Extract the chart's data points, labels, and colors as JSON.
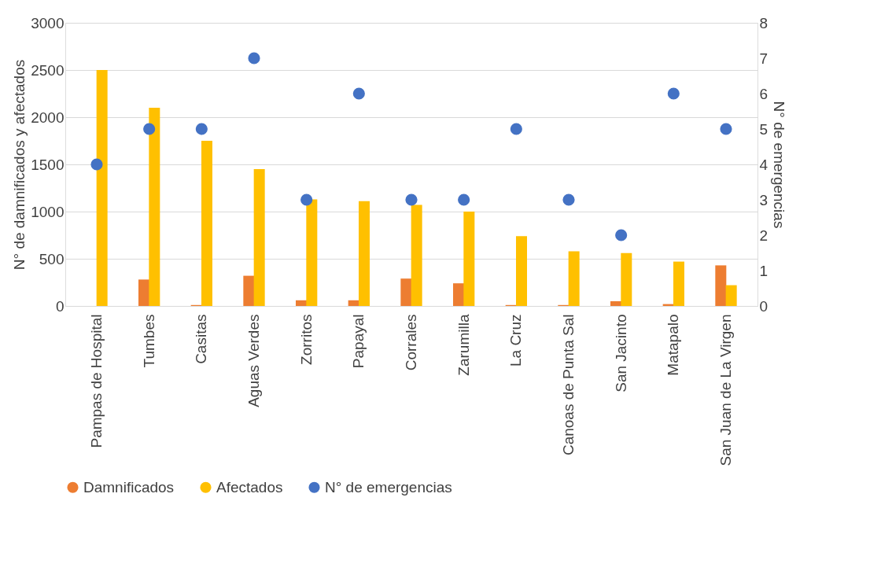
{
  "chart_data": {
    "type": "bar",
    "ylabel": "N° de damnificados y afectados",
    "y2label": "N° de emergencias",
    "categories": [
      "Pampas de Hospital",
      "Tumbes",
      "Casitas",
      "Aguas Verdes",
      "Zorritos",
      "Papayal",
      "Corrales",
      "Zarumilla",
      "La Cruz",
      "Canoas de Punta Sal",
      "San Jacinto",
      "Matapalo",
      "San Juan de La Virgen"
    ],
    "series": [
      {
        "name": "Damnificados",
        "color": "#ed7d31",
        "values": [
          0,
          280,
          10,
          320,
          60,
          60,
          290,
          240,
          10,
          10,
          50,
          20,
          430
        ]
      },
      {
        "name": "Afectados",
        "color": "#ffc000",
        "values": [
          2500,
          2100,
          1750,
          1450,
          1130,
          1110,
          1070,
          1000,
          740,
          580,
          560,
          470,
          220
        ]
      },
      {
        "name": "N° de emergencias",
        "type": "scatter",
        "axis": "y2",
        "marker": "circle",
        "color": "#4472c4",
        "values": [
          4,
          5,
          5,
          7,
          3,
          6,
          3,
          3,
          5,
          3,
          2,
          6,
          5
        ]
      }
    ],
    "ylim": [
      0,
      3000
    ],
    "yticks": [
      0,
      500,
      1000,
      1500,
      2000,
      2500,
      3000
    ],
    "y2lim": [
      0,
      8
    ],
    "y2ticks": [
      0,
      1,
      2,
      3,
      4,
      5,
      6,
      7,
      8
    ],
    "grid": "y",
    "legend": "bottom"
  }
}
